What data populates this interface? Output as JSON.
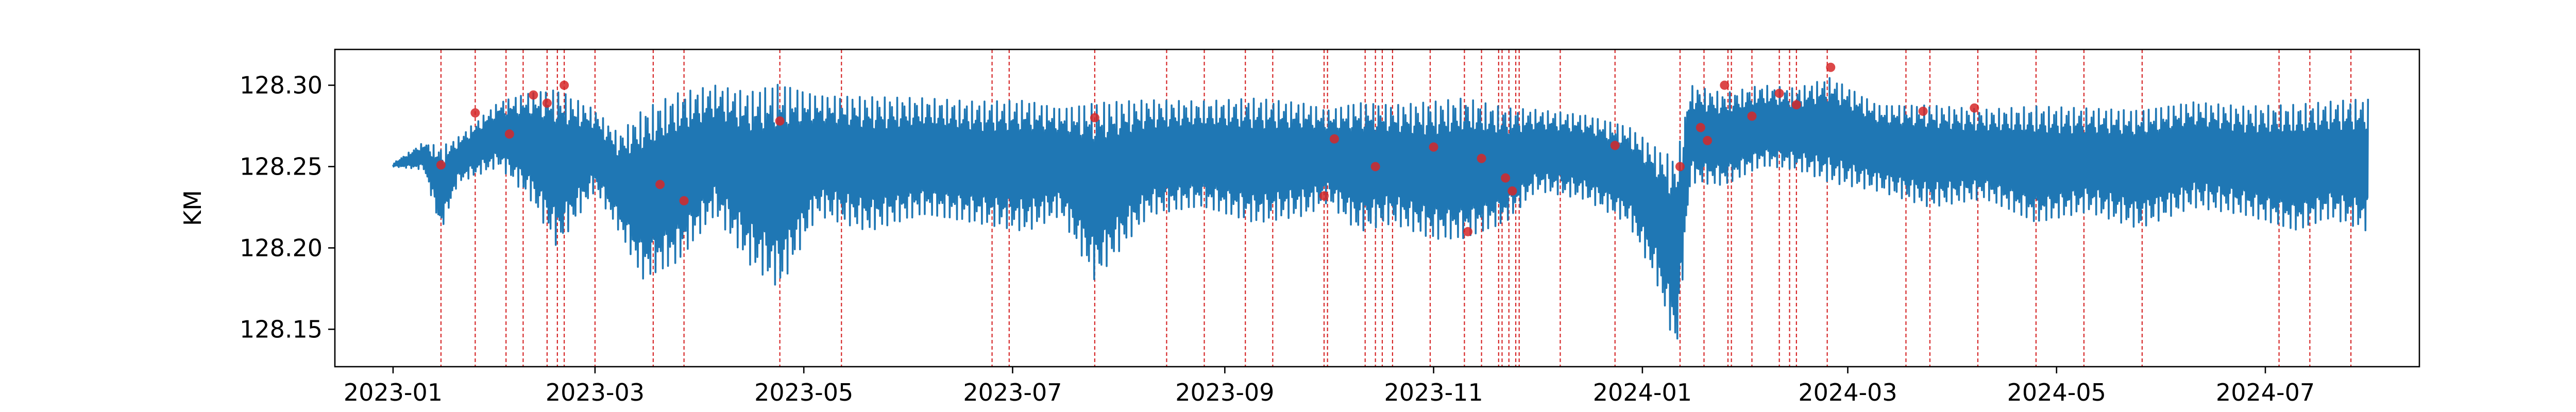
{
  "chart_data": {
    "type": "line",
    "title": "",
    "xlabel": "",
    "ylabel": "KM",
    "xlim": [
      "2022-12-15",
      "2024-08-15"
    ],
    "ylim": [
      128.127,
      128.322
    ],
    "grid": false,
    "x_ticks": [
      "2023-01",
      "2023-03",
      "2023-05",
      "2023-07",
      "2023-09",
      "2023-11",
      "2024-01",
      "2024-03",
      "2024-05",
      "2024-07"
    ],
    "y_ticks": [
      128.15,
      128.2,
      128.25,
      128.3
    ],
    "y_tick_labels": [
      "128.15",
      "128.20",
      "128.25",
      "128.30"
    ],
    "colors": {
      "line": "#1f77b4",
      "marker": "#d62728",
      "vline": "#d62728"
    },
    "series": [
      {
        "type": "line",
        "x_start": "2023-01-01",
        "x_end": "2024-07-31",
        "envelope_x": [
          "2023-01-01",
          "2023-01-10",
          "2023-01-15",
          "2023-01-20",
          "2023-02-01",
          "2023-02-10",
          "2023-02-18",
          "2023-03-01",
          "2023-03-08",
          "2023-03-15",
          "2023-03-25",
          "2023-04-05",
          "2023-04-15",
          "2023-04-24",
          "2023-05-05",
          "2023-05-20",
          "2023-06-05",
          "2023-06-20",
          "2023-07-05",
          "2023-07-15",
          "2023-07-25",
          "2023-08-10",
          "2023-08-25",
          "2023-09-10",
          "2023-09-25",
          "2023-10-01",
          "2023-10-10",
          "2023-10-20",
          "2023-11-01",
          "2023-11-10",
          "2023-11-22",
          "2023-12-01",
          "2023-12-15",
          "2023-12-28",
          "2024-01-05",
          "2024-01-11",
          "2024-01-15",
          "2024-01-25",
          "2024-02-05",
          "2024-02-15",
          "2024-02-25",
          "2024-03-10",
          "2024-03-25",
          "2024-04-10",
          "2024-04-25",
          "2024-05-10",
          "2024-05-25",
          "2024-06-10",
          "2024-06-25",
          "2024-07-10",
          "2024-07-20",
          "2024-07-31"
        ],
        "upper": [
          128.252,
          128.265,
          128.262,
          128.268,
          128.29,
          128.296,
          128.298,
          128.285,
          128.27,
          128.285,
          128.295,
          128.3,
          128.296,
          128.302,
          128.294,
          128.293,
          128.292,
          128.29,
          128.291,
          128.286,
          128.29,
          128.291,
          128.29,
          128.292,
          128.289,
          128.285,
          128.29,
          128.288,
          128.29,
          128.292,
          128.286,
          128.285,
          128.282,
          128.275,
          128.262,
          128.255,
          128.3,
          128.295,
          128.3,
          128.298,
          128.305,
          128.288,
          128.288,
          128.285,
          128.287,
          128.286,
          128.285,
          128.29,
          128.287,
          128.288,
          128.29,
          128.292
        ],
        "lower": [
          128.25,
          128.248,
          128.21,
          128.24,
          128.25,
          128.23,
          128.2,
          128.235,
          128.21,
          128.18,
          128.19,
          128.22,
          128.19,
          128.175,
          128.22,
          128.21,
          128.22,
          128.215,
          128.21,
          128.22,
          128.18,
          128.22,
          128.225,
          128.215,
          128.22,
          128.228,
          128.21,
          128.215,
          128.205,
          128.205,
          128.215,
          128.235,
          128.23,
          128.215,
          128.18,
          128.135,
          128.24,
          128.238,
          128.25,
          128.248,
          128.24,
          128.235,
          128.225,
          128.23,
          128.215,
          128.222,
          128.212,
          128.225,
          128.22,
          128.21,
          128.218,
          128.21
        ]
      }
    ],
    "markers": [
      {
        "x": "2023-01-15",
        "y": 128.251
      },
      {
        "x": "2023-01-25",
        "y": 128.283
      },
      {
        "x": "2023-02-04",
        "y": 128.27
      },
      {
        "x": "2023-02-11",
        "y": 128.294
      },
      {
        "x": "2023-02-15",
        "y": 128.289
      },
      {
        "x": "2023-02-20",
        "y": 128.3
      },
      {
        "x": "2023-03-20",
        "y": 128.239
      },
      {
        "x": "2023-03-27",
        "y": 128.229
      },
      {
        "x": "2023-04-24",
        "y": 128.278
      },
      {
        "x": "2023-07-25",
        "y": 128.28
      },
      {
        "x": "2023-09-30",
        "y": 128.232
      },
      {
        "x": "2023-10-03",
        "y": 128.267
      },
      {
        "x": "2023-10-15",
        "y": 128.25
      },
      {
        "x": "2023-11-01",
        "y": 128.262
      },
      {
        "x": "2023-11-11",
        "y": 128.21
      },
      {
        "x": "2023-11-15",
        "y": 128.255
      },
      {
        "x": "2023-11-22",
        "y": 128.243
      },
      {
        "x": "2023-11-24",
        "y": 128.235
      },
      {
        "x": "2023-12-24",
        "y": 128.263
      },
      {
        "x": "2024-01-12",
        "y": 128.25
      },
      {
        "x": "2024-01-18",
        "y": 128.274
      },
      {
        "x": "2024-01-20",
        "y": 128.266
      },
      {
        "x": "2024-01-25",
        "y": 128.3
      },
      {
        "x": "2024-02-02",
        "y": 128.281
      },
      {
        "x": "2024-02-10",
        "y": 128.295
      },
      {
        "x": "2024-02-15",
        "y": 128.288
      },
      {
        "x": "2024-02-25",
        "y": 128.311
      },
      {
        "x": "2024-03-23",
        "y": 128.284
      },
      {
        "x": "2024-04-07",
        "y": 128.286
      }
    ],
    "vlines": [
      "2023-01-15",
      "2023-01-25",
      "2023-02-03",
      "2023-02-08",
      "2023-02-15",
      "2023-02-18",
      "2023-02-20",
      "2023-03-01",
      "2023-03-18",
      "2023-03-27",
      "2023-04-24",
      "2023-05-12",
      "2023-06-25",
      "2023-06-30",
      "2023-07-25",
      "2023-08-15",
      "2023-08-26",
      "2023-09-07",
      "2023-09-15",
      "2023-09-30",
      "2023-10-01",
      "2023-10-12",
      "2023-10-15",
      "2023-10-17",
      "2023-10-20",
      "2023-10-31",
      "2023-11-10",
      "2023-11-15",
      "2023-11-20",
      "2023-11-21",
      "2023-11-23",
      "2023-11-25",
      "2023-11-26",
      "2023-12-08",
      "2023-12-24",
      "2024-01-12",
      "2024-01-19",
      "2024-01-26",
      "2024-01-27",
      "2024-02-02",
      "2024-02-10",
      "2024-02-13",
      "2024-02-15",
      "2024-02-24",
      "2024-03-18",
      "2024-03-25",
      "2024-04-08",
      "2024-04-25",
      "2024-05-09",
      "2024-05-26",
      "2024-07-05",
      "2024-07-14",
      "2024-07-26"
    ]
  }
}
